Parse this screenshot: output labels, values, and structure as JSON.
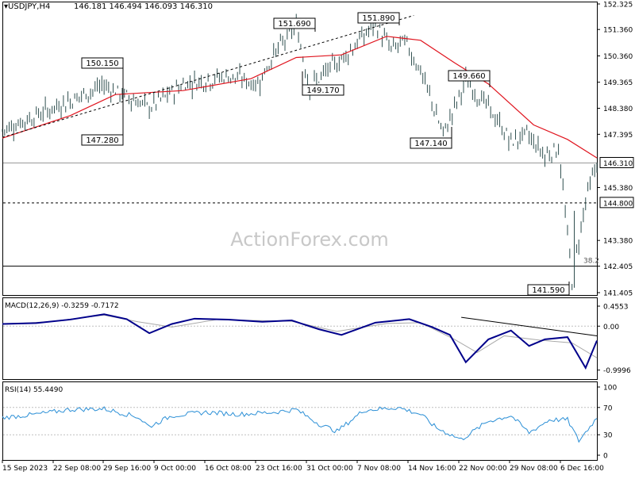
{
  "header": {
    "symbol_label": "USDJPY,H4",
    "ohlc": "146.181 146.494 146.093 146.310"
  },
  "watermark": "ActionForex.com",
  "colors": {
    "bars": "#2f4f4f",
    "ma": "#e0141e",
    "macd": "#00008b",
    "signal": "#a9a9a9",
    "rsi": "#2b8fd6",
    "grid": "#d0d0d0"
  },
  "chart_data": [
    {
      "panel": "price",
      "type": "line",
      "title": "USDJPY,H4",
      "ylim": [
        141.405,
        152.325
      ],
      "y_ticks": [
        "152.325",
        "151.360",
        "150.360",
        "149.365",
        "148.380",
        "147.395",
        "146.310",
        "145.380",
        "144.800",
        "143.380",
        "142.405",
        "141.405"
      ],
      "x_labels": [
        "15 Sep 2023",
        "22 Sep 08:00",
        "29 Sep 16:00",
        "9 Oct 00:00",
        "16 Oct 08:00",
        "23 Oct 16:00",
        "31 Oct 00:00",
        "7 Nov 08:00",
        "14 Nov 16:00",
        "22 Nov 00:00",
        "29 Nov 08:00",
        "6 Dec 16:00"
      ],
      "price_path": [
        {
          "i": 0,
          "v": 147.55
        },
        {
          "i": 20,
          "v": 148.3
        },
        {
          "i": 45,
          "v": 149.25
        },
        {
          "i": 65,
          "v": 148.4
        },
        {
          "i": 80,
          "v": 149.3
        },
        {
          "i": 100,
          "v": 149.6
        },
        {
          "i": 113,
          "v": 149.3
        },
        {
          "i": 120,
          "v": 150.4
        },
        {
          "i": 130,
          "v": 151.5
        },
        {
          "i": 136,
          "v": 149.2
        },
        {
          "i": 150,
          "v": 150.25
        },
        {
          "i": 165,
          "v": 151.55
        },
        {
          "i": 172,
          "v": 150.6
        },
        {
          "i": 178,
          "v": 150.9
        },
        {
          "i": 185,
          "v": 149.8
        },
        {
          "i": 195,
          "v": 147.4
        },
        {
          "i": 205,
          "v": 149.4
        },
        {
          "i": 215,
          "v": 148.4
        },
        {
          "i": 225,
          "v": 147.1
        },
        {
          "i": 232,
          "v": 147.4
        },
        {
          "i": 240,
          "v": 146.6
        },
        {
          "i": 246,
          "v": 146.9
        },
        {
          "i": 252,
          "v": 141.9
        },
        {
          "i": 258,
          "v": 144.9
        },
        {
          "i": 263,
          "v": 146.31
        }
      ],
      "moving_average": [
        {
          "i": 0,
          "v": 147.25
        },
        {
          "i": 30,
          "v": 148.1
        },
        {
          "i": 50,
          "v": 148.9
        },
        {
          "i": 80,
          "v": 149.05
        },
        {
          "i": 110,
          "v": 149.5
        },
        {
          "i": 130,
          "v": 150.3
        },
        {
          "i": 150,
          "v": 150.4
        },
        {
          "i": 170,
          "v": 151.1
        },
        {
          "i": 185,
          "v": 150.95
        },
        {
          "i": 200,
          "v": 150.1
        },
        {
          "i": 215,
          "v": 149.3
        },
        {
          "i": 235,
          "v": 147.75
        },
        {
          "i": 250,
          "v": 147.2
        },
        {
          "i": 263,
          "v": 146.5
        }
      ],
      "annotations": [
        {
          "text": "147.280",
          "i": 52
        },
        {
          "text": "150.150",
          "i": 52
        },
        {
          "text": "151.690",
          "i": 136
        },
        {
          "text": "149.170",
          "i": 136
        },
        {
          "text": "151.890",
          "i": 182
        },
        {
          "text": "147.140",
          "i": 205
        },
        {
          "text": "149.660",
          "i": 215
        },
        {
          "text": "141.590",
          "i": 253
        }
      ],
      "horizontal_lines": [
        {
          "value": 146.31,
          "style": "solid",
          "label": "146.310"
        },
        {
          "value": 144.8,
          "style": "dashed",
          "label": "144.800"
        },
        {
          "value": 142.405,
          "style": "solid",
          "label": "38.2"
        }
      ],
      "trendline": {
        "from": {
          "i": 0,
          "v": 147.28
        },
        "to": {
          "i": 182,
          "v": 151.89
        }
      }
    },
    {
      "panel": "macd",
      "type": "line",
      "title": "MACD(12,26,9) -0.3259 -0.7172",
      "ylim": [
        -0.9996,
        0.4553
      ],
      "y_ticks": [
        "0.4553",
        "0.00",
        "-0.9996"
      ],
      "series": [
        {
          "name": "MACD",
          "points": [
            {
              "i": 0,
              "v": 0.05
            },
            {
              "i": 15,
              "v": 0.07
            },
            {
              "i": 30,
              "v": 0.15
            },
            {
              "i": 45,
              "v": 0.27
            },
            {
              "i": 55,
              "v": 0.16
            },
            {
              "i": 65,
              "v": -0.16
            },
            {
              "i": 75,
              "v": 0.05
            },
            {
              "i": 85,
              "v": 0.17
            },
            {
              "i": 100,
              "v": 0.15
            },
            {
              "i": 115,
              "v": 0.1
            },
            {
              "i": 128,
              "v": 0.13
            },
            {
              "i": 140,
              "v": -0.07
            },
            {
              "i": 150,
              "v": -0.2
            },
            {
              "i": 165,
              "v": 0.08
            },
            {
              "i": 180,
              "v": 0.16
            },
            {
              "i": 190,
              "v": -0.02
            },
            {
              "i": 198,
              "v": -0.2
            },
            {
              "i": 205,
              "v": -0.82
            },
            {
              "i": 215,
              "v": -0.3
            },
            {
              "i": 225,
              "v": -0.1
            },
            {
              "i": 233,
              "v": -0.45
            },
            {
              "i": 240,
              "v": -0.3
            },
            {
              "i": 250,
              "v": -0.25
            },
            {
              "i": 258,
              "v": -0.95
            },
            {
              "i": 263,
              "v": -0.33
            }
          ]
        },
        {
          "name": "Signal",
          "points": [
            {
              "i": 0,
              "v": 0.04
            },
            {
              "i": 20,
              "v": 0.1
            },
            {
              "i": 45,
              "v": 0.25
            },
            {
              "i": 60,
              "v": 0.1
            },
            {
              "i": 75,
              "v": -0.02
            },
            {
              "i": 95,
              "v": 0.15
            },
            {
              "i": 128,
              "v": 0.11
            },
            {
              "i": 148,
              "v": -0.12
            },
            {
              "i": 170,
              "v": 0.06
            },
            {
              "i": 185,
              "v": 0.08
            },
            {
              "i": 200,
              "v": -0.3
            },
            {
              "i": 210,
              "v": -0.6
            },
            {
              "i": 222,
              "v": -0.22
            },
            {
              "i": 238,
              "v": -0.32
            },
            {
              "i": 252,
              "v": -0.38
            },
            {
              "i": 263,
              "v": -0.72
            }
          ]
        }
      ],
      "trendline": {
        "from": {
          "i": 203,
          "v": 0.2
        },
        "to": {
          "i": 263,
          "v": -0.22
        }
      }
    },
    {
      "panel": "rsi",
      "type": "line",
      "title": "RSI(14) 55.4490",
      "ylim": [
        0,
        100
      ],
      "y_ticks": [
        "100",
        "70",
        "30",
        "0"
      ],
      "levels": [
        70,
        30
      ],
      "series": [
        {
          "name": "RSI",
          "points": [
            {
              "i": 0,
              "v": 55
            },
            {
              "i": 15,
              "v": 60
            },
            {
              "i": 30,
              "v": 67
            },
            {
              "i": 45,
              "v": 68
            },
            {
              "i": 60,
              "v": 56
            },
            {
              "i": 65,
              "v": 42
            },
            {
              "i": 75,
              "v": 58
            },
            {
              "i": 90,
              "v": 63
            },
            {
              "i": 105,
              "v": 60
            },
            {
              "i": 120,
              "v": 63
            },
            {
              "i": 130,
              "v": 67
            },
            {
              "i": 140,
              "v": 46
            },
            {
              "i": 148,
              "v": 35
            },
            {
              "i": 160,
              "v": 66
            },
            {
              "i": 175,
              "v": 70
            },
            {
              "i": 185,
              "v": 60
            },
            {
              "i": 192,
              "v": 40
            },
            {
              "i": 203,
              "v": 23
            },
            {
              "i": 215,
              "v": 50
            },
            {
              "i": 225,
              "v": 58
            },
            {
              "i": 233,
              "v": 33
            },
            {
              "i": 242,
              "v": 52
            },
            {
              "i": 250,
              "v": 52
            },
            {
              "i": 255,
              "v": 21
            },
            {
              "i": 263,
              "v": 55
            }
          ]
        }
      ]
    }
  ]
}
